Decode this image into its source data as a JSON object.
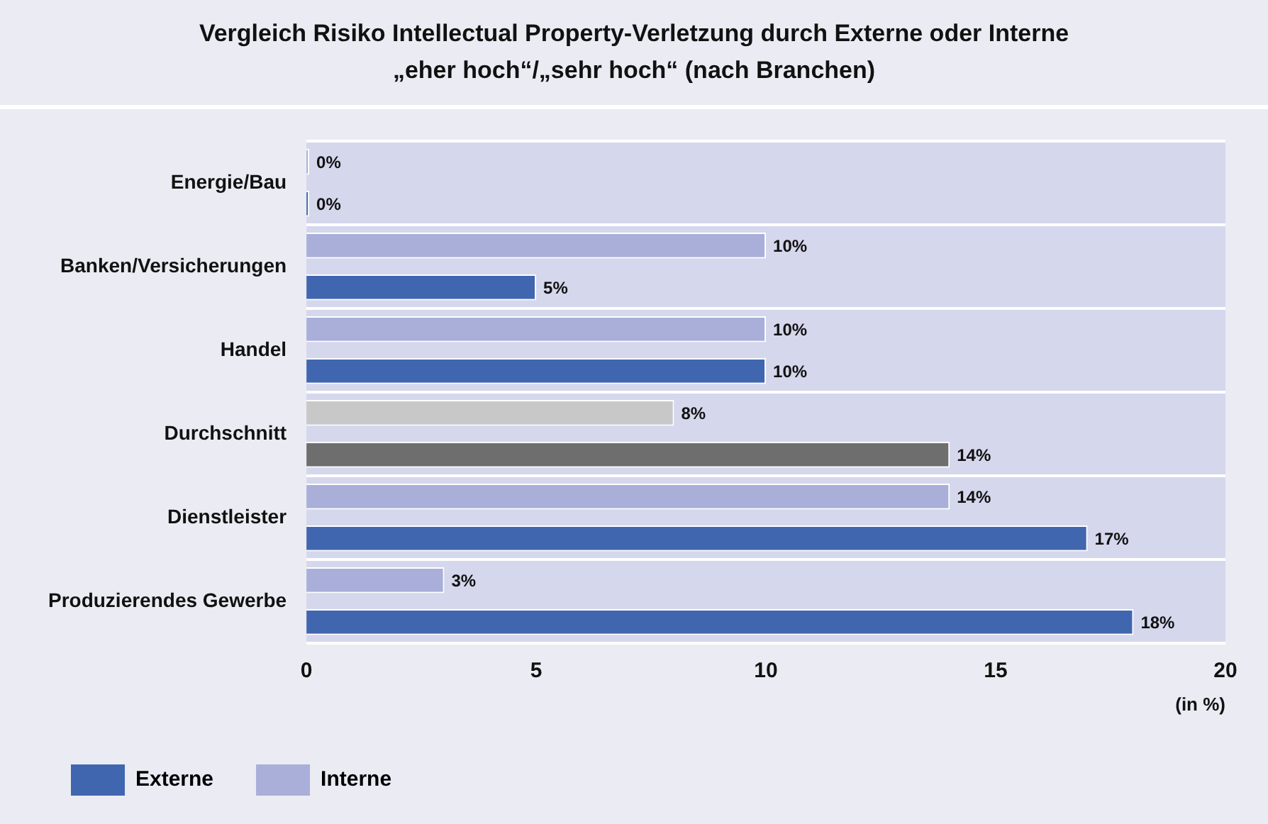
{
  "chart_data": {
    "type": "bar",
    "orientation": "horizontal",
    "title": "Vergleich Risiko Intellectual Property-Verletzung durch Externe oder Interne\n„eher hoch“/„sehr hoch“ (nach Branchen)",
    "xlabel": "(in %)",
    "categories": [
      "Energie/Bau",
      "Banken/Versicherungen",
      "Handel",
      "Durchschnitt",
      "Dienstleister",
      "Produzierendes Gewerbe"
    ],
    "series": [
      {
        "name": "Interne",
        "color": "#a9afd9",
        "colors": [
          "#a9afd9",
          "#a9afd9",
          "#a9afd9",
          "#c8c8c8",
          "#a9afd9",
          "#a9afd9"
        ],
        "values": [
          0,
          10,
          10,
          8,
          14,
          3
        ],
        "value_labels": [
          "0%",
          "10%",
          "10%",
          "8%",
          "14%",
          "3%"
        ]
      },
      {
        "name": "Externe",
        "color": "#4066b0",
        "colors": [
          "#4066b0",
          "#4066b0",
          "#4066b0",
          "#6e6e6e",
          "#4066b0",
          "#4066b0"
        ],
        "values": [
          0,
          5,
          10,
          14,
          17,
          18
        ],
        "value_labels": [
          "0%",
          "5%",
          "10%",
          "14%",
          "17%",
          "18%"
        ]
      }
    ],
    "xlim": [
      0,
      20
    ],
    "xticks": [
      0,
      5,
      10,
      15,
      20
    ],
    "grid": "y",
    "legend": "bottom left"
  }
}
